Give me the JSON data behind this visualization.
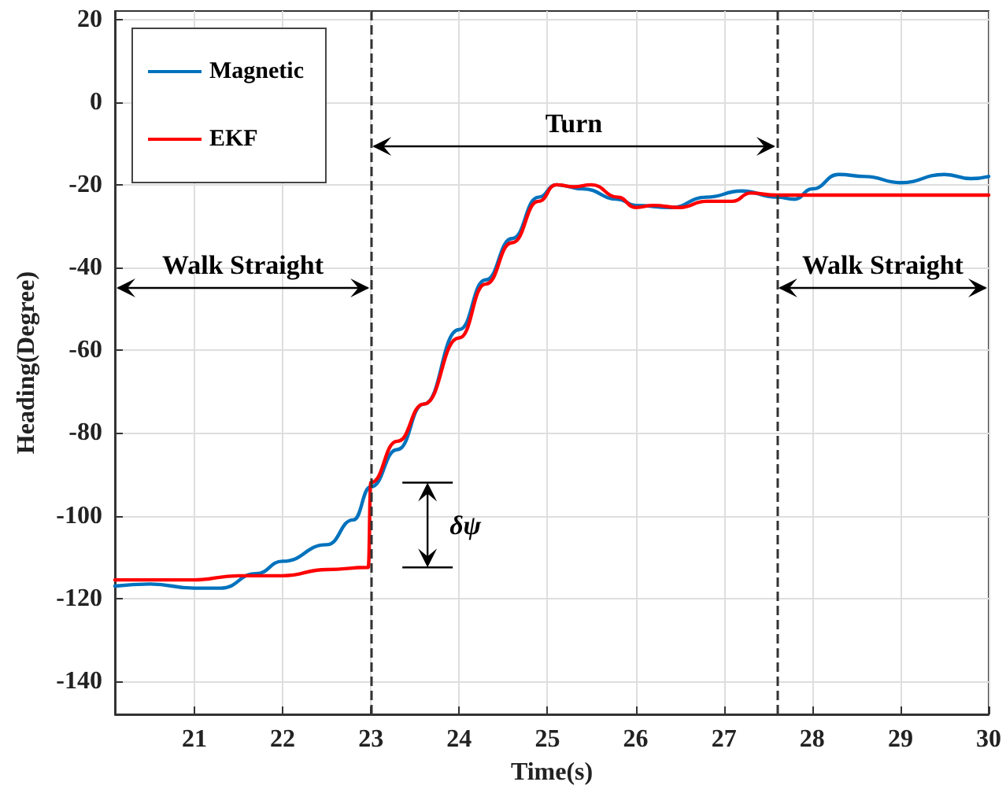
{
  "chart_data": {
    "type": "line",
    "xlabel": "Time(s)",
    "ylabel": "Heading(Degree)",
    "xlim": [
      20.1,
      30
    ],
    "xticks": [
      21,
      22,
      23,
      24,
      25,
      26,
      27,
      28,
      29,
      30
    ],
    "ylim": [
      -148,
      22
    ],
    "yticks": [
      -140,
      -120,
      -100,
      -80,
      -60,
      -40,
      -20,
      0,
      20
    ],
    "grid": true,
    "legend": "top left",
    "marker": "none",
    "line_style": "solid",
    "series": [
      {
        "name": "Magnetic",
        "color": "#0072bd",
        "x": [
          20.1,
          20.5,
          21,
          21.3,
          21.7,
          22,
          22.5,
          22.8,
          23,
          23.3,
          23.6,
          24,
          24.3,
          24.6,
          24.9,
          25.1,
          25.4,
          25.8,
          26,
          26.4,
          26.8,
          27.2,
          27.6,
          27.8,
          28,
          28.3,
          28.6,
          29,
          29.5,
          29.8,
          30
        ],
        "values": [
          -117,
          -116.5,
          -117.5,
          -117.5,
          -114,
          -111,
          -107,
          -101,
          -93,
          -84,
          -73,
          -55,
          -43,
          -33,
          -23,
          -20,
          -21,
          -23.5,
          -25,
          -25.5,
          -23,
          -21.5,
          -23,
          -23.5,
          -21,
          -17.5,
          -18,
          -19.5,
          -17.5,
          -18.5,
          -18
        ]
      },
      {
        "name": "EKF",
        "color": "#ff0000",
        "x": [
          20.1,
          20.5,
          21,
          21.5,
          22,
          22.5,
          22.97,
          23,
          23.3,
          23.6,
          24,
          24.3,
          24.6,
          24.9,
          25.1,
          25.3,
          25.5,
          25.8,
          26,
          26.2,
          26.5,
          26.8,
          27.1,
          27.3,
          27.6,
          28,
          29,
          30
        ],
        "values": [
          -115.5,
          -115.5,
          -115.5,
          -114.5,
          -114.5,
          -113,
          -112.5,
          -92,
          -82,
          -73,
          -57,
          -44,
          -34,
          -24,
          -20,
          -20.5,
          -20,
          -23,
          -25.5,
          -25,
          -25.5,
          -24,
          -24,
          -22,
          -22.5,
          -22.5,
          -22.5,
          -22.5
        ]
      }
    ],
    "ref_lines": [
      {
        "axis": "x",
        "value": 23,
        "color": "#333333",
        "line_style": "dashed"
      },
      {
        "axis": "x",
        "value": 27.6,
        "color": "#333333",
        "line_style": "dashed"
      }
    ],
    "annotations": [
      "Walk Straight",
      "Turn",
      "Walk Straight",
      "δψ"
    ]
  }
}
